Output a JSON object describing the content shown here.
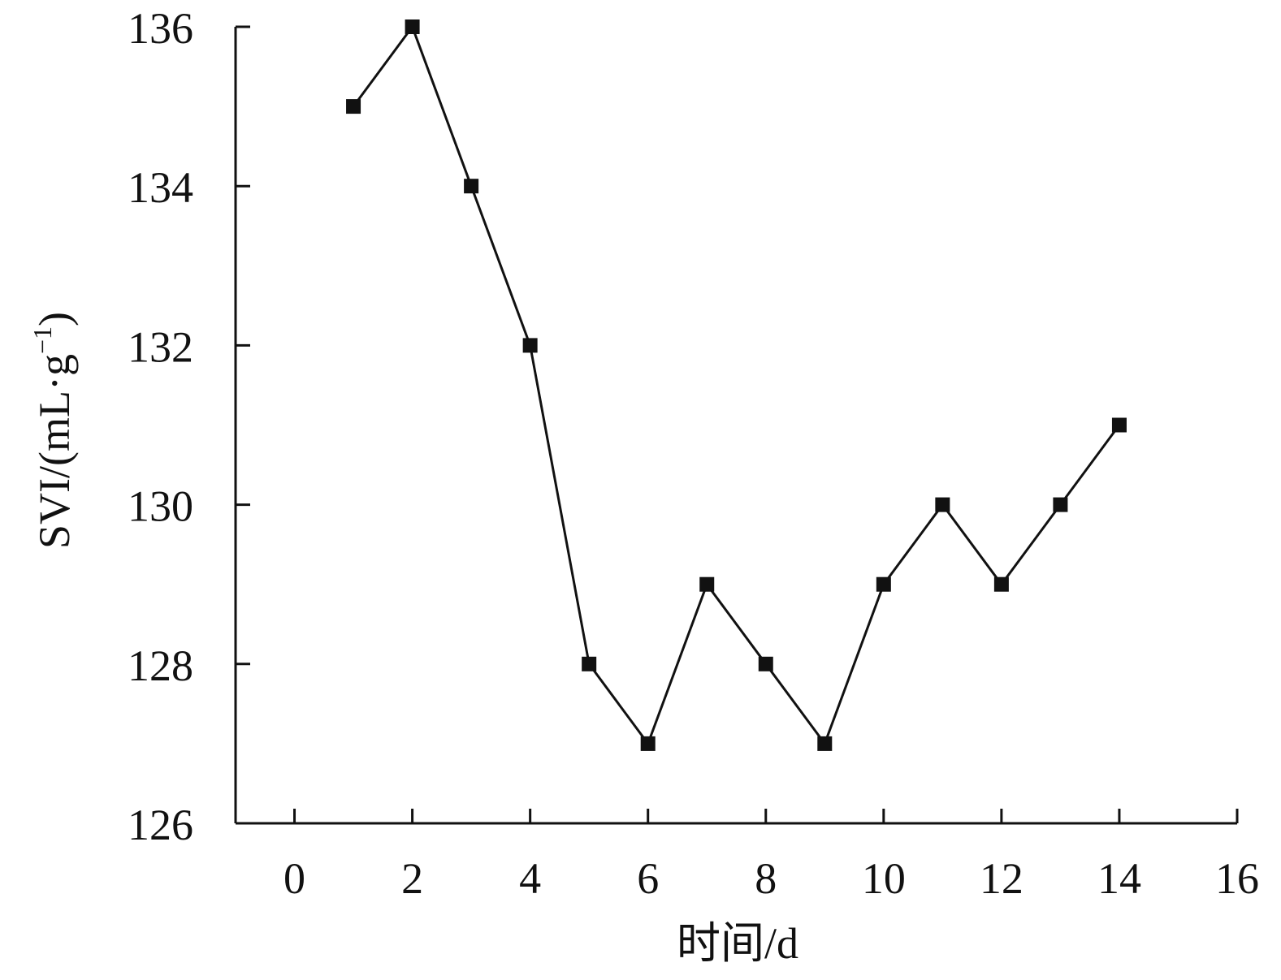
{
  "chart_data": {
    "type": "line",
    "title": "",
    "xlabel": "时间/d",
    "ylabel_main": "SVI/(mL·g",
    "ylabel_sup": "−1",
    "ylabel_close": ")",
    "xlim": [
      -1,
      16
    ],
    "ylim": [
      126,
      136
    ],
    "xticks": [
      0,
      2,
      4,
      6,
      8,
      10,
      12,
      14,
      16
    ],
    "yticks": [
      126,
      128,
      130,
      132,
      134,
      136
    ],
    "grid": false,
    "marker": "square",
    "line_color": "#111111",
    "series": [
      {
        "x": [
          1,
          2,
          3,
          4,
          5,
          6,
          7,
          8,
          9,
          10,
          11,
          12,
          13,
          14
        ],
        "y": [
          135,
          136,
          134,
          132,
          128,
          127,
          129,
          128,
          127,
          129,
          130,
          129,
          130,
          131
        ]
      }
    ]
  }
}
